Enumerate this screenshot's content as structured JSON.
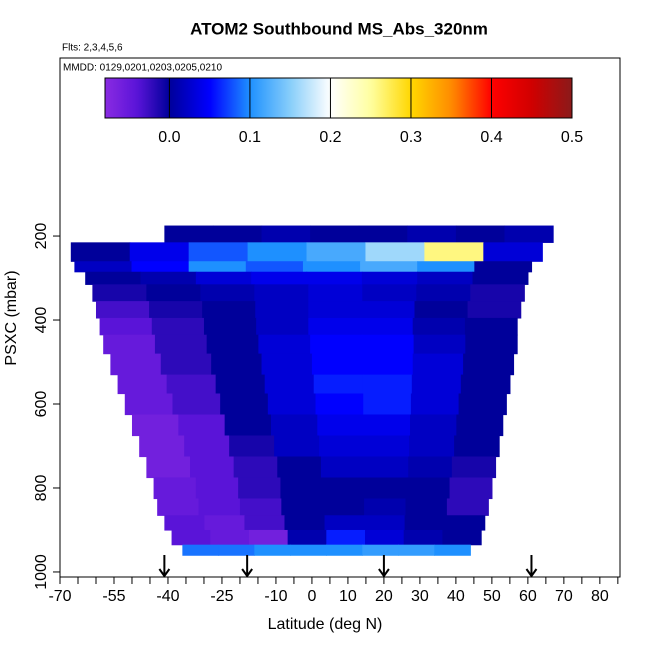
{
  "chart_data": {
    "type": "heatmap",
    "title": "ATOM2 Southbound MS_Abs_320nm",
    "subtitle": "Flts: 2,3,4,5,6",
    "annotation": "MMDD: 0129,0201,0203,0205,0210",
    "xlabel": "Latitude (deg N)",
    "ylabel": "PSXC (mbar)",
    "xlim": [
      -70,
      85.6
    ],
    "ylim": [
      1012,
      -224
    ],
    "xticks": [
      -70,
      -55,
      -40,
      -25,
      -10,
      0,
      10,
      20,
      30,
      40,
      50,
      60,
      70,
      80
    ],
    "xminorticks": [
      -65,
      -60,
      -50,
      -45,
      -35,
      -30,
      -20,
      -15,
      -5,
      5,
      15,
      25,
      35,
      45,
      55,
      65,
      75,
      85
    ],
    "yticks": [
      200,
      400,
      600,
      800,
      1000
    ],
    "colorbar": {
      "lim": [
        -0.08,
        0.5
      ],
      "ticks": [
        {
          "value": 0,
          "label": "0.0"
        },
        0.1,
        0.2,
        0.3,
        0.4,
        0.5
      ]
    },
    "colorscale": [
      [
        -0.08,
        "#8a2be2"
      ],
      [
        -0.04,
        "#5a14d8"
      ],
      [
        0.0,
        "#00009a"
      ],
      [
        0.05,
        "#0000ff"
      ],
      [
        0.1,
        "#1e90ff"
      ],
      [
        0.15,
        "#87cefa"
      ],
      [
        0.2,
        "#ffffff"
      ],
      [
        0.25,
        "#ffffa0"
      ],
      [
        0.3,
        "#ffd700"
      ],
      [
        0.35,
        "#ff8c00"
      ],
      [
        0.4,
        "#ff0000"
      ],
      [
        0.45,
        "#d00000"
      ],
      [
        0.5,
        "#8b1a1a"
      ]
    ],
    "arrows": [
      -41,
      -18,
      20,
      61
    ],
    "rows": [
      {
        "pressure": [
          175,
          215
        ],
        "lat": [
          -41,
          67
        ],
        "values": [
          0.0,
          0.0,
          0.01,
          0.0,
          0.0,
          0.01,
          0.0,
          0.01
        ]
      },
      {
        "pressure": [
          215,
          260
        ],
        "lat": [
          -67,
          64
        ],
        "values": [
          0.0,
          0.04,
          0.08,
          0.1,
          0.12,
          0.16,
          0.26,
          0.03
        ]
      },
      {
        "pressure": [
          260,
          285
        ],
        "lat": [
          -66,
          61
        ],
        "values": [
          0.02,
          0.05,
          0.1,
          0.08,
          0.1,
          0.12,
          0.1,
          0.0
        ]
      },
      {
        "pressure": [
          285,
          315
        ],
        "lat": [
          -63,
          60
        ],
        "values": [
          0.0,
          0.01,
          0.03,
          0.04,
          0.04,
          0.03,
          0.02,
          0.0
        ]
      },
      {
        "pressure": [
          315,
          355
        ],
        "lat": [
          -61,
          59
        ],
        "values": [
          -0.01,
          0.0,
          0.01,
          0.02,
          0.03,
          0.02,
          0.01,
          -0.01
        ]
      },
      {
        "pressure": [
          355,
          395
        ],
        "lat": [
          -60,
          58
        ],
        "values": [
          -0.03,
          -0.01,
          0.0,
          0.02,
          0.03,
          0.03,
          0.0,
          -0.01
        ]
      },
      {
        "pressure": [
          395,
          435
        ],
        "lat": [
          -59,
          57
        ],
        "values": [
          -0.04,
          -0.02,
          0.0,
          0.02,
          0.04,
          0.04,
          0.01,
          0.0
        ]
      },
      {
        "pressure": [
          435,
          480
        ],
        "lat": [
          -58,
          57
        ],
        "values": [
          -0.05,
          -0.02,
          0.0,
          0.03,
          0.05,
          0.05,
          0.02,
          0.0
        ]
      },
      {
        "pressure": [
          480,
          530
        ],
        "lat": [
          -56,
          56
        ],
        "values": [
          -0.05,
          -0.02,
          0.0,
          0.03,
          0.05,
          0.05,
          0.03,
          0.0
        ]
      },
      {
        "pressure": [
          530,
          575
        ],
        "lat": [
          -54,
          55
        ],
        "values": [
          -0.05,
          -0.03,
          0.0,
          0.03,
          0.06,
          0.06,
          0.03,
          0.0
        ]
      },
      {
        "pressure": [
          575,
          625
        ],
        "lat": [
          -52,
          54
        ],
        "values": [
          -0.05,
          -0.03,
          0.0,
          0.03,
          0.05,
          0.06,
          0.03,
          0.0
        ]
      },
      {
        "pressure": [
          625,
          675
        ],
        "lat": [
          -50,
          53
        ],
        "values": [
          -0.06,
          -0.04,
          0.0,
          0.02,
          0.04,
          0.04,
          0.02,
          0.0
        ]
      },
      {
        "pressure": [
          675,
          725
        ],
        "lat": [
          -48,
          52
        ],
        "values": [
          -0.06,
          -0.04,
          -0.01,
          0.02,
          0.03,
          0.03,
          0.02,
          0.0
        ]
      },
      {
        "pressure": [
          725,
          775
        ],
        "lat": [
          -46,
          51
        ],
        "values": [
          -0.06,
          -0.04,
          -0.02,
          0.0,
          0.02,
          0.02,
          0.01,
          -0.01
        ]
      },
      {
        "pressure": [
          775,
          825
        ],
        "lat": [
          -44,
          50
        ],
        "values": [
          -0.05,
          -0.04,
          -0.02,
          0.0,
          0.0,
          0.0,
          0.0,
          -0.02
        ]
      },
      {
        "pressure": [
          825,
          865
        ],
        "lat": [
          -43,
          49
        ],
        "values": [
          -0.05,
          -0.04,
          -0.03,
          0.0,
          0.0,
          0.01,
          0.0,
          -0.02
        ]
      },
      {
        "pressure": [
          865,
          900
        ],
        "lat": [
          -41,
          48
        ],
        "values": [
          -0.04,
          -0.05,
          -0.03,
          0.0,
          0.02,
          0.02,
          0.0,
          0.0
        ]
      },
      {
        "pressure": [
          900,
          935
        ],
        "lat": [
          -39,
          47
        ],
        "values": [
          -0.04,
          -0.05,
          -0.06,
          0.01,
          0.06,
          0.03,
          0.01,
          0.0
        ]
      },
      {
        "pressure": [
          935,
          960
        ],
        "lat": [
          -36,
          44
        ],
        "values": [
          0.09,
          0.09,
          0.1,
          0.1,
          0.1,
          0.11,
          0.11,
          0.1
        ]
      }
    ]
  }
}
